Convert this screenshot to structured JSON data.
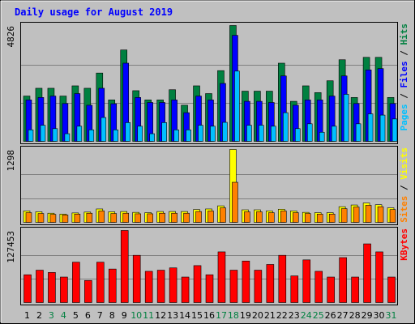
{
  "chart_data": {
    "type": "bar",
    "title": "Daily usage for August 2019",
    "categories": [
      "1",
      "2",
      "3",
      "4",
      "5",
      "6",
      "7",
      "8",
      "9",
      "10",
      "11",
      "12",
      "13",
      "14",
      "15",
      "16",
      "17",
      "18",
      "19",
      "20",
      "21",
      "22",
      "23",
      "24",
      "25",
      "26",
      "27",
      "28",
      "29",
      "30",
      "31"
    ],
    "weekend_days": [
      3,
      4,
      10,
      11,
      17,
      18,
      24,
      25,
      31
    ],
    "panels": [
      {
        "id": "pages-files-hits",
        "ymax_label": "4826",
        "ymax": 4826,
        "right_labels": [
          {
            "text": "Pages",
            "color": "#00C0FF"
          },
          {
            "text": " / ",
            "color": "#000000"
          },
          {
            "text": "Files",
            "color": "#0000FF"
          },
          {
            "text": " / ",
            "color": "#000000"
          },
          {
            "text": "Hits",
            "color": "#008040"
          }
        ],
        "series": [
          {
            "name": "Hits",
            "color": "#008040",
            "values": [
              1908,
              2230,
              2230,
              1908,
              2330,
              2230,
              2860,
              1747,
              3815,
              2130,
              1747,
              1747,
              2170,
              1528,
              2330,
              2010,
              2960,
              4826,
              2110,
              2110,
              2110,
              3268,
              1690,
              2330,
              2050,
              2540,
              3410,
              1849,
              3510,
              3510,
              1849
            ]
          },
          {
            "name": "Files",
            "color": "#0000FF",
            "values": [
              1747,
              1849,
              1908,
              1598,
              2010,
              1528,
              2230,
              1590,
              3268,
              1849,
              1642,
              1642,
              1747,
              1220,
              1908,
              1747,
              2430,
              4420,
              1690,
              1690,
              1642,
              2740,
              1528,
              1747,
              1747,
              1908,
              2740,
              1598,
              2990,
              3044,
              1598
            ]
          },
          {
            "name": "Pages",
            "color": "#00C0FF",
            "values": [
              510,
              700,
              560,
              350,
              660,
              510,
              1020,
              510,
              810,
              660,
              350,
              810,
              510,
              510,
              700,
              660,
              820,
              2940,
              700,
              700,
              660,
              1220,
              560,
              760,
              410,
              660,
              1980,
              760,
              1170,
              1120,
              960
            ]
          }
        ]
      },
      {
        "id": "visits-sites",
        "ymax_label": "1298",
        "ymax": 1298,
        "right_labels": [
          {
            "text": "Sites",
            "color": "#FF8000"
          },
          {
            "text": " / ",
            "color": "#000000"
          },
          {
            "text": "Visits",
            "color": "#FFFF00"
          }
        ],
        "series": [
          {
            "name": "Visits",
            "color": "#FFFF00",
            "values": [
              215,
              200,
              175,
              160,
              180,
              195,
              250,
              200,
              205,
              190,
              185,
              205,
              205,
              205,
              240,
              250,
              305,
              1298,
              235,
              235,
              215,
              245,
              215,
              190,
              185,
              185,
              290,
              320,
              355,
              325,
              270
            ]
          },
          {
            "name": "Sites",
            "color": "#FF8000",
            "values": [
              185,
              170,
              155,
              145,
              160,
              175,
              215,
              170,
              175,
              165,
              165,
              175,
              175,
              175,
              205,
              215,
              270,
              720,
              200,
              200,
              185,
              215,
              185,
              170,
              160,
              160,
              255,
              285,
              315,
              290,
              240
            ]
          }
        ]
      },
      {
        "id": "kbytes",
        "ymax_label": "127453",
        "ymax": 127453,
        "right_labels": [
          {
            "text": "KBytes",
            "color": "#FF0000"
          }
        ],
        "series": [
          {
            "name": "KBytes",
            "color": "#FF0000",
            "values": [
              50000,
              58000,
              54000,
              46000,
              72000,
              40000,
              72000,
              60000,
              127453,
              84000,
              56000,
              58000,
              62000,
              46000,
              66000,
              50000,
              90000,
              58000,
              74000,
              58000,
              68000,
              84000,
              48000,
              76000,
              56000,
              46000,
              80000,
              46000,
              104000,
              90000,
              46000
            ]
          }
        ]
      }
    ]
  }
}
